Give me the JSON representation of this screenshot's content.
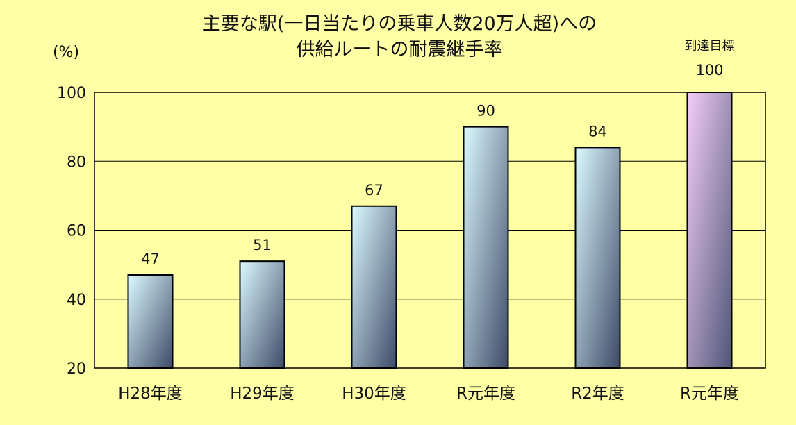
{
  "chart_data": {
    "type": "bar",
    "title": [
      "主要な駅(一日当たりの乗車人数20万人超)への",
      "供給ルートの耐震継手率"
    ],
    "ylabel": "(%)",
    "ylim": [
      20,
      100
    ],
    "yticks": [
      20,
      40,
      60,
      80,
      100
    ],
    "grid": true,
    "categories": [
      "H28年度",
      "H29年度",
      "H30年度",
      "R元年度",
      "R2年度",
      "R元年度"
    ],
    "values": [
      47,
      51,
      67,
      90,
      84,
      100
    ],
    "target_index": 5,
    "target_label": "到達目標",
    "colors": {
      "bar_light": "#dcfaff",
      "bar_dark": "#3e4a68",
      "target_light": "#f4cdf8",
      "target_dark": "#4e5676",
      "background": "#ffffa6",
      "grid": "#000000"
    }
  }
}
